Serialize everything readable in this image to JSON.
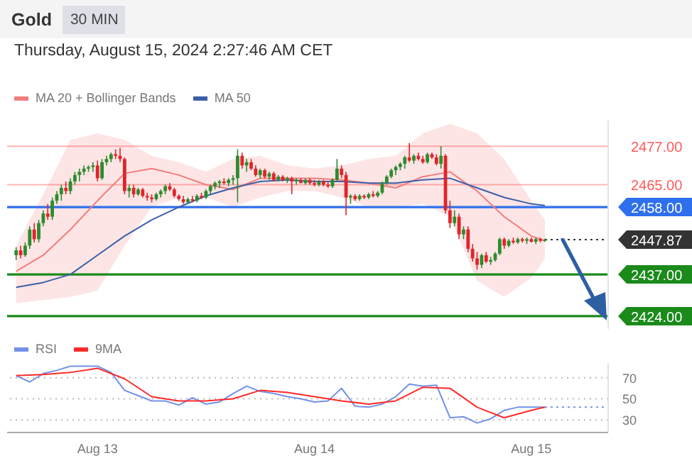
{
  "chart_data": [
    {
      "type": "candlestick",
      "title": "Gold",
      "subtitle": "30 MIN",
      "annotations": [
        "Thursday, August 15, 2024 2:27:46 AM CET"
      ],
      "x": [
        "2024-08-12T15:00",
        "2024-08-12T15:30",
        "2024-08-12T16:00",
        "2024-08-12T16:30",
        "2024-08-12T17:00",
        "2024-08-12T17:30",
        "2024-08-12T18:00",
        "2024-08-12T18:30",
        "2024-08-12T19:00",
        "2024-08-12T19:30",
        "2024-08-12T20:00",
        "2024-08-12T20:30",
        "2024-08-12T21:00",
        "2024-08-12T21:30",
        "2024-08-12T22:00",
        "2024-08-12T22:30",
        "2024-08-12T23:00",
        "2024-08-12T23:30",
        "2024-08-13T00:00",
        "2024-08-13T00:30",
        "2024-08-13T01:00",
        "2024-08-13T01:30",
        "2024-08-13T02:00",
        "2024-08-13T02:30",
        "2024-08-13T03:00",
        "2024-08-13T03:30",
        "2024-08-13T04:00",
        "2024-08-13T04:30",
        "2024-08-13T05:00",
        "2024-08-13T05:30",
        "2024-08-13T06:00",
        "2024-08-13T06:30",
        "2024-08-13T07:00",
        "2024-08-13T07:30",
        "2024-08-13T08:00",
        "2024-08-13T08:30",
        "2024-08-13T09:00",
        "2024-08-13T09:30",
        "2024-08-13T10:00",
        "2024-08-13T10:30",
        "2024-08-13T11:00",
        "2024-08-13T11:30",
        "2024-08-13T12:00",
        "2024-08-13T12:30",
        "2024-08-13T13:00",
        "2024-08-13T13:30",
        "2024-08-13T14:00",
        "2024-08-13T14:30",
        "2024-08-13T15:00",
        "2024-08-13T15:30",
        "2024-08-13T16:00",
        "2024-08-13T16:30",
        "2024-08-13T17:00",
        "2024-08-13T17:30",
        "2024-08-13T18:00",
        "2024-08-13T18:30",
        "2024-08-13T19:00",
        "2024-08-13T19:30",
        "2024-08-13T20:00",
        "2024-08-13T20:30",
        "2024-08-13T21:00",
        "2024-08-13T21:30",
        "2024-08-13T22:00",
        "2024-08-13T22:30",
        "2024-08-13T23:00",
        "2024-08-13T23:30",
        "2024-08-14T00:00",
        "2024-08-14T00:30",
        "2024-08-14T01:00",
        "2024-08-14T01:30",
        "2024-08-14T02:00",
        "2024-08-14T02:30",
        "2024-08-14T03:00",
        "2024-08-14T03:30",
        "2024-08-14T04:00",
        "2024-08-14T04:30",
        "2024-08-14T05:00",
        "2024-08-14T05:30",
        "2024-08-14T06:00",
        "2024-08-14T06:30",
        "2024-08-14T07:00",
        "2024-08-14T07:30",
        "2024-08-14T08:00",
        "2024-08-14T08:30",
        "2024-08-14T09:00",
        "2024-08-14T09:30",
        "2024-08-14T10:00",
        "2024-08-14T10:30",
        "2024-08-14T11:00",
        "2024-08-14T11:30",
        "2024-08-14T12:00",
        "2024-08-14T12:30",
        "2024-08-14T13:00",
        "2024-08-14T13:30",
        "2024-08-14T14:00",
        "2024-08-14T14:30",
        "2024-08-14T15:00",
        "2024-08-14T15:30",
        "2024-08-14T16:00",
        "2024-08-14T16:30",
        "2024-08-14T17:00",
        "2024-08-14T17:30",
        "2024-08-14T18:00",
        "2024-08-14T18:30",
        "2024-08-14T19:00",
        "2024-08-14T19:30",
        "2024-08-14T20:00",
        "2024-08-14T20:30",
        "2024-08-14T21:00",
        "2024-08-14T21:30",
        "2024-08-14T22:00",
        "2024-08-14T22:30",
        "2024-08-14T23:00",
        "2024-08-14T23:30",
        "2024-08-15T00:00",
        "2024-08-15T00:30",
        "2024-08-15T01:00",
        "2024-08-15T01:30"
      ],
      "ohlc": [
        [
          2443,
          2445.5,
          2441.5,
          2444.5
        ],
        [
          2444.5,
          2446,
          2442,
          2443
        ],
        [
          2443,
          2447,
          2442.5,
          2446
        ],
        [
          2446,
          2452,
          2445,
          2451
        ],
        [
          2451,
          2453,
          2447,
          2448
        ],
        [
          2448,
          2454,
          2447,
          2453
        ],
        [
          2453,
          2457,
          2452,
          2456
        ],
        [
          2456,
          2459,
          2454,
          2455
        ],
        [
          2455,
          2461,
          2454,
          2460
        ],
        [
          2460,
          2463,
          2459,
          2462
        ],
        [
          2462,
          2465,
          2460,
          2464
        ],
        [
          2464,
          2466,
          2462,
          2463
        ],
        [
          2463,
          2467,
          2462,
          2466
        ],
        [
          2466,
          2469,
          2465,
          2468
        ],
        [
          2468,
          2470,
          2466,
          2469
        ],
        [
          2469,
          2471,
          2468,
          2470
        ],
        [
          2470,
          2471,
          2469,
          2470.5
        ],
        [
          2470.5,
          2472,
          2469,
          2471
        ],
        [
          2471,
          2472.5,
          2466,
          2467
        ],
        [
          2467,
          2473,
          2466.5,
          2472
        ],
        [
          2472,
          2474,
          2471,
          2473
        ],
        [
          2473,
          2475,
          2472,
          2474.5
        ],
        [
          2474.5,
          2476,
          2473,
          2474
        ],
        [
          2474,
          2476.5,
          2472,
          2473
        ],
        [
          2473,
          2473.5,
          2462,
          2463
        ],
        [
          2463,
          2465,
          2461,
          2464
        ],
        [
          2464,
          2465,
          2461,
          2462
        ],
        [
          2462,
          2464,
          2461.5,
          2463.5
        ],
        [
          2463.5,
          2464,
          2461,
          2461.5
        ],
        [
          2461.5,
          2462.5,
          2460,
          2461
        ],
        [
          2461,
          2462,
          2459.5,
          2460.5
        ],
        [
          2460.5,
          2462.5,
          2460,
          2462
        ],
        [
          2462,
          2463.5,
          2461,
          2463
        ],
        [
          2463,
          2465,
          2462,
          2464.5
        ],
        [
          2464.5,
          2465.5,
          2463,
          2463.5
        ],
        [
          2463.5,
          2464,
          2461,
          2461.5
        ],
        [
          2461.5,
          2462,
          2460,
          2460.5
        ],
        [
          2460.5,
          2461.5,
          2459,
          2459.5
        ],
        [
          2459.5,
          2461,
          2459,
          2460.5
        ],
        [
          2460.5,
          2461.5,
          2459.5,
          2460
        ],
        [
          2460,
          2462,
          2459.5,
          2461.5
        ],
        [
          2461.5,
          2462.5,
          2460.5,
          2461
        ],
        [
          2461,
          2463.5,
          2460.5,
          2463
        ],
        [
          2463,
          2465,
          2462,
          2464.5
        ],
        [
          2464.5,
          2466,
          2463.5,
          2465.5
        ],
        [
          2465.5,
          2466.5,
          2464,
          2466
        ],
        [
          2466,
          2467,
          2465,
          2465.5
        ],
        [
          2465.5,
          2467,
          2464.5,
          2466.5
        ],
        [
          2466.5,
          2468,
          2465,
          2467
        ],
        [
          2467,
          2476,
          2459.5,
          2474
        ],
        [
          2474,
          2475,
          2470,
          2471
        ],
        [
          2471,
          2473,
          2469,
          2472
        ],
        [
          2472,
          2473,
          2469.5,
          2470
        ],
        [
          2470,
          2471,
          2467.5,
          2468
        ],
        [
          2468,
          2470,
          2467,
          2469.5
        ],
        [
          2469.5,
          2470,
          2467,
          2467.5
        ],
        [
          2467.5,
          2469,
          2466.5,
          2468.5
        ],
        [
          2468.5,
          2469,
          2466,
          2466.5
        ],
        [
          2466.5,
          2468,
          2466,
          2467.5
        ],
        [
          2467.5,
          2468,
          2466,
          2466.5
        ],
        [
          2466.5,
          2467.5,
          2465.5,
          2467
        ],
        [
          2467,
          2467.5,
          2462,
          2466
        ],
        [
          2466,
          2467,
          2465,
          2466.5
        ],
        [
          2466.5,
          2467,
          2465.5,
          2465.5
        ],
        [
          2465.5,
          2467,
          2465,
          2466.5
        ],
        [
          2466.5,
          2467,
          2465,
          2465.5
        ],
        [
          2465.5,
          2466.5,
          2464.5,
          2465
        ],
        [
          2465,
          2466.5,
          2464.5,
          2466
        ],
        [
          2466,
          2466.5,
          2464.5,
          2465
        ],
        [
          2465,
          2466,
          2464,
          2464.5
        ],
        [
          2464.5,
          2467,
          2464,
          2466.5
        ],
        [
          2466.5,
          2473,
          2466,
          2470
        ],
        [
          2470,
          2471,
          2467,
          2468
        ],
        [
          2468,
          2469,
          2455.5,
          2461
        ],
        [
          2461,
          2462,
          2459,
          2461.5
        ],
        [
          2461.5,
          2462,
          2460,
          2460.5
        ],
        [
          2460.5,
          2462,
          2460,
          2461.5
        ],
        [
          2461.5,
          2462,
          2460.5,
          2461
        ],
        [
          2461,
          2462.5,
          2460.5,
          2462
        ],
        [
          2462,
          2463,
          2461,
          2461.5
        ],
        [
          2461.5,
          2463,
          2461,
          2462.5
        ],
        [
          2462.5,
          2466,
          2462,
          2465.5
        ],
        [
          2465.5,
          2468,
          2465,
          2467.5
        ],
        [
          2467.5,
          2470,
          2467,
          2469.5
        ],
        [
          2469.5,
          2471,
          2468,
          2470.5
        ],
        [
          2470.5,
          2472,
          2469.5,
          2471.5
        ],
        [
          2471.5,
          2474,
          2470,
          2473.5
        ],
        [
          2473.5,
          2478,
          2472,
          2472.5
        ],
        [
          2472.5,
          2474.5,
          2471.5,
          2474
        ],
        [
          2474,
          2475,
          2472.5,
          2473
        ],
        [
          2473,
          2474,
          2471.5,
          2472
        ],
        [
          2472,
          2475,
          2471.5,
          2474.5
        ],
        [
          2474.5,
          2475,
          2473,
          2473.5
        ],
        [
          2473.5,
          2474.5,
          2471,
          2471.5
        ],
        [
          2471.5,
          2477,
          2470,
          2474
        ],
        [
          2474,
          2474.5,
          2456,
          2457
        ],
        [
          2457,
          2460,
          2451.5,
          2453
        ],
        [
          2453,
          2457,
          2452,
          2455
        ],
        [
          2455,
          2456,
          2448,
          2449.5
        ],
        [
          2449.5,
          2452,
          2448,
          2451
        ],
        [
          2451,
          2452,
          2444,
          2445
        ],
        [
          2445,
          2446.5,
          2441,
          2442
        ],
        [
          2442,
          2444,
          2438.5,
          2440
        ],
        [
          2440,
          2443.5,
          2439,
          2443
        ],
        [
          2443,
          2444,
          2440.5,
          2441
        ],
        [
          2441,
          2442.5,
          2440,
          2441.5
        ],
        [
          2441.5,
          2444,
          2441,
          2443.5
        ],
        [
          2443.5,
          2448.5,
          2443,
          2448
        ],
        [
          2448,
          2448.5,
          2445,
          2446
        ],
        [
          2446,
          2448,
          2445.5,
          2447.5
        ],
        [
          2447.5,
          2448.5,
          2446.5,
          2447
        ],
        [
          2447,
          2448.5,
          2446.5,
          2448
        ],
        [
          2448,
          2448.5,
          2447,
          2447.5
        ],
        [
          2447.5,
          2448.5,
          2446.5,
          2448
        ],
        [
          2448,
          2448.5,
          2447,
          2447.2
        ],
        [
          2447.2,
          2448.5,
          2446.5,
          2448
        ],
        [
          2448,
          2448.5,
          2447,
          2447.5
        ],
        [
          2447.5,
          2448.2,
          2447.2,
          2447.87
        ]
      ],
      "series": [
        {
          "name": "MA 20 + Bollinger Bands",
          "type": "line",
          "color": "#f47c7c",
          "x": [
            "2024-08-12T15:00",
            "2024-08-12T18:00",
            "2024-08-12T21:00",
            "2024-08-13T00:00",
            "2024-08-13T03:00",
            "2024-08-13T06:00",
            "2024-08-13T09:00",
            "2024-08-13T12:00",
            "2024-08-13T15:00",
            "2024-08-13T18:00",
            "2024-08-13T21:00",
            "2024-08-14T00:00",
            "2024-08-14T03:00",
            "2024-08-14T06:00",
            "2024-08-14T09:00",
            "2024-08-14T12:00",
            "2024-08-14T15:00",
            "2024-08-14T18:00",
            "2024-08-14T21:00",
            "2024-08-15T00:00",
            "2024-08-15T01:30"
          ],
          "values": [
            2438,
            2443,
            2451,
            2460,
            2468.5,
            2470,
            2468,
            2465,
            2463.5,
            2467,
            2467,
            2467,
            2466.5,
            2465.5,
            2464,
            2467.5,
            2469,
            2463,
            2455,
            2449,
            2447.5
          ],
          "lower": [
            2428,
            2429,
            2430,
            2432,
            2446,
            2458,
            2461,
            2461,
            2458,
            2461,
            2463,
            2463,
            2461,
            2458,
            2458,
            2459,
            2455,
            2435,
            2430,
            2436,
            2442
          ],
          "upper": [
            2446,
            2462,
            2479,
            2481,
            2479,
            2474,
            2472,
            2469,
            2473,
            2474,
            2471,
            2470,
            2471,
            2473,
            2474,
            2481,
            2484,
            2481,
            2473,
            2460,
            2454
          ]
        },
        {
          "name": "MA 50",
          "type": "line",
          "color": "#3d5fa8",
          "x": [
            "2024-08-12T15:00",
            "2024-08-12T18:00",
            "2024-08-12T21:00",
            "2024-08-13T00:00",
            "2024-08-13T03:00",
            "2024-08-13T06:00",
            "2024-08-13T09:00",
            "2024-08-13T12:00",
            "2024-08-13T15:00",
            "2024-08-13T18:00",
            "2024-08-13T21:00",
            "2024-08-14T00:00",
            "2024-08-14T03:00",
            "2024-08-14T06:00",
            "2024-08-14T09:00",
            "2024-08-14T12:00",
            "2024-08-14T15:00",
            "2024-08-14T18:00",
            "2024-08-14T21:00",
            "2024-08-15T00:00",
            "2024-08-15T01:30"
          ],
          "values": [
            2433,
            2434.5,
            2437,
            2443,
            2449,
            2454,
            2458,
            2461.5,
            2464,
            2466,
            2466.5,
            2466,
            2466,
            2465.5,
            2465.5,
            2466.5,
            2467,
            2464,
            2461,
            2459,
            2458.5
          ]
        }
      ],
      "ref_lines": [
        {
          "axis": "y",
          "value": 2477,
          "color": "#ff5a5a"
        },
        {
          "axis": "y",
          "value": 2465,
          "color": "#ff5a5a"
        },
        {
          "axis": "y",
          "value": 2458,
          "color": "#2f6fed"
        },
        {
          "axis": "y",
          "value": 2447.87,
          "color": "#333333",
          "line_style": "dotted"
        },
        {
          "axis": "y",
          "value": 2437,
          "color": "#1a8a1a"
        },
        {
          "axis": "y",
          "value": 2424,
          "color": "#1a8a1a"
        }
      ],
      "yticks": [
        {
          "value": 2477,
          "label": "2477.00"
        },
        {
          "value": 2465,
          "label": "2465.00"
        },
        {
          "value": 2458,
          "label": "2458.00"
        },
        {
          "value": 2447.87,
          "label": "2447.87"
        },
        {
          "value": 2437,
          "label": "2437.00"
        },
        {
          "value": 2424,
          "label": "2424.00"
        }
      ],
      "xlim": [
        "2024-08-12T14:00",
        "2024-08-15T08:30"
      ],
      "ylim": [
        2420,
        2485
      ],
      "legend": "top left"
    },
    {
      "type": "line",
      "series": [
        {
          "name": "RSI",
          "color": "#7391e8",
          "x": [
            "2024-08-12T15:00",
            "2024-08-12T16:30",
            "2024-08-12T18:00",
            "2024-08-12T19:30",
            "2024-08-12T21:00",
            "2024-08-12T22:30",
            "2024-08-13T00:00",
            "2024-08-13T01:30",
            "2024-08-13T03:00",
            "2024-08-13T04:30",
            "2024-08-13T06:00",
            "2024-08-13T07:30",
            "2024-08-13T09:00",
            "2024-08-13T10:30",
            "2024-08-13T12:00",
            "2024-08-13T13:30",
            "2024-08-13T15:00",
            "2024-08-13T16:30",
            "2024-08-13T18:00",
            "2024-08-13T19:30",
            "2024-08-13T21:00",
            "2024-08-13T22:30",
            "2024-08-14T00:00",
            "2024-08-14T01:30",
            "2024-08-14T03:00",
            "2024-08-14T04:30",
            "2024-08-14T06:00",
            "2024-08-14T07:30",
            "2024-08-14T09:00",
            "2024-08-14T10:30",
            "2024-08-14T12:00",
            "2024-08-14T13:30",
            "2024-08-14T15:00",
            "2024-08-14T16:30",
            "2024-08-14T18:00",
            "2024-08-14T19:30",
            "2024-08-14T21:00",
            "2024-08-14T22:30",
            "2024-08-15T00:00",
            "2024-08-15T01:30"
          ],
          "values": [
            72,
            66,
            74,
            77,
            81,
            81,
            81,
            75,
            58,
            53,
            48,
            48,
            44,
            51,
            45,
            47,
            55,
            62,
            57,
            55,
            52,
            50,
            47,
            48,
            60,
            43,
            42,
            45,
            52,
            64,
            62,
            63,
            32,
            33,
            27,
            31,
            39,
            42,
            42,
            42
          ]
        },
        {
          "name": "9MA",
          "color": "#ff2a2a",
          "x": [
            "2024-08-12T15:00",
            "2024-08-12T18:00",
            "2024-08-12T21:00",
            "2024-08-13T00:00",
            "2024-08-13T03:00",
            "2024-08-13T06:00",
            "2024-08-13T09:00",
            "2024-08-13T12:00",
            "2024-08-13T15:00",
            "2024-08-13T18:00",
            "2024-08-13T21:00",
            "2024-08-14T00:00",
            "2024-08-14T03:00",
            "2024-08-14T06:00",
            "2024-08-14T09:00",
            "2024-08-14T12:00",
            "2024-08-14T15:00",
            "2024-08-14T18:00",
            "2024-08-14T21:00",
            "2024-08-15T00:00",
            "2024-08-15T01:30"
          ],
          "values": [
            72,
            73,
            75,
            79,
            69,
            52,
            48,
            48,
            50,
            58,
            56,
            52,
            48,
            45,
            48,
            61,
            60,
            42,
            32,
            39,
            42
          ]
        }
      ],
      "ref_lines": [
        {
          "axis": "y",
          "value": 42,
          "color": "#7391e8",
          "line_style": "dotted"
        }
      ],
      "xlim": [
        "2024-08-12T14:00",
        "2024-08-15T08:30"
      ],
      "xticks": [
        {
          "value": "2024-08-13",
          "label": "Aug 13"
        },
        {
          "value": "2024-08-14",
          "label": "Aug 14"
        },
        {
          "value": "2024-08-15",
          "label": "Aug 15"
        }
      ],
      "ylim": [
        18,
        84
      ],
      "yticks": [
        30,
        50,
        70
      ],
      "grid": "y",
      "legend": "top left"
    }
  ]
}
